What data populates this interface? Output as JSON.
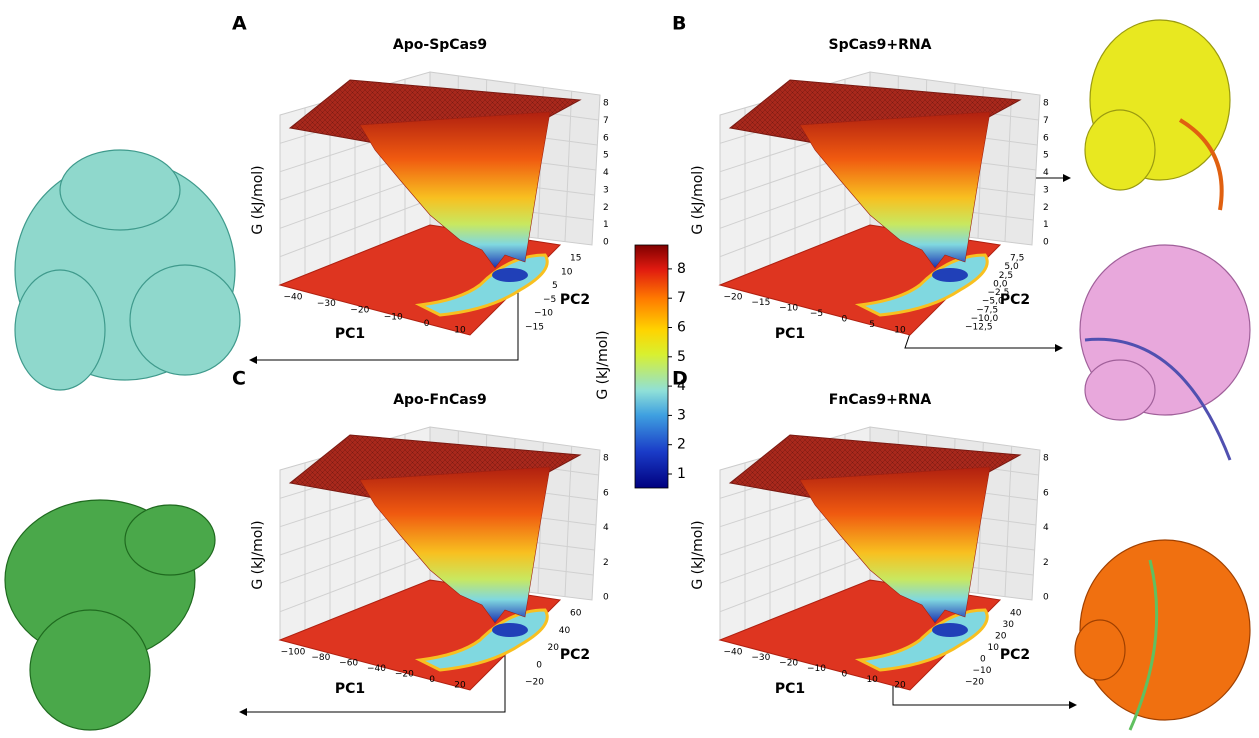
{
  "panels": [
    {
      "letter": "A",
      "title": "Apo-SpCas9",
      "z_label": "G (kJ/mol)",
      "x_label": "PC1",
      "y_label": "PC2",
      "z_ticks": [
        "0",
        "1",
        "2",
        "3",
        "4",
        "5",
        "6",
        "7",
        "8"
      ],
      "x_ticks": [
        "−40",
        "−30",
        "−20",
        "−10",
        "0",
        "10"
      ],
      "y_ticks": [
        "15",
        "10",
        "5",
        "−5",
        "−10",
        "−15"
      ]
    },
    {
      "letter": "B",
      "title": "SpCas9+RNA",
      "z_label": "G (kJ/mol)",
      "x_label": "PC1",
      "y_label": "PC2",
      "z_ticks": [
        "0",
        "1",
        "2",
        "3",
        "4",
        "5",
        "6",
        "7",
        "8"
      ],
      "x_ticks": [
        "−20",
        "−15",
        "−10",
        "−5",
        "0",
        "5",
        "10"
      ],
      "y_ticks": [
        "7,5",
        "5,0",
        "2,5",
        "0,0",
        "−2,5",
        "−5,0",
        "−7,5",
        "−10,0",
        "−12,5"
      ]
    },
    {
      "letter": "C",
      "title": "Apo-FnCas9",
      "z_label": "G (kJ/mol)",
      "x_label": "PC1",
      "y_label": "PC2",
      "z_ticks": [
        "0",
        "2",
        "4",
        "6",
        "8"
      ],
      "x_ticks": [
        "−100",
        "−80",
        "−60",
        "−40",
        "−20",
        "0",
        "20"
      ],
      "y_ticks": [
        "60",
        "40",
        "20",
        "0",
        "−20"
      ]
    },
    {
      "letter": "D",
      "title": "FnCas9+RNA",
      "z_label": "G (kJ/mol)",
      "x_label": "PC1",
      "y_label": "PC2",
      "z_ticks": [
        "0",
        "2",
        "4",
        "6",
        "8"
      ],
      "x_ticks": [
        "−40",
        "−30",
        "−20",
        "−10",
        "0",
        "10",
        "20"
      ],
      "y_ticks": [
        "40",
        "30",
        "20",
        "10",
        "0",
        "−10",
        "−20"
      ]
    }
  ],
  "colorbar": {
    "label": "G (kJ/mol)",
    "ticks": [
      "1",
      "2",
      "3",
      "4",
      "5",
      "6",
      "7",
      "8"
    ]
  }
}
